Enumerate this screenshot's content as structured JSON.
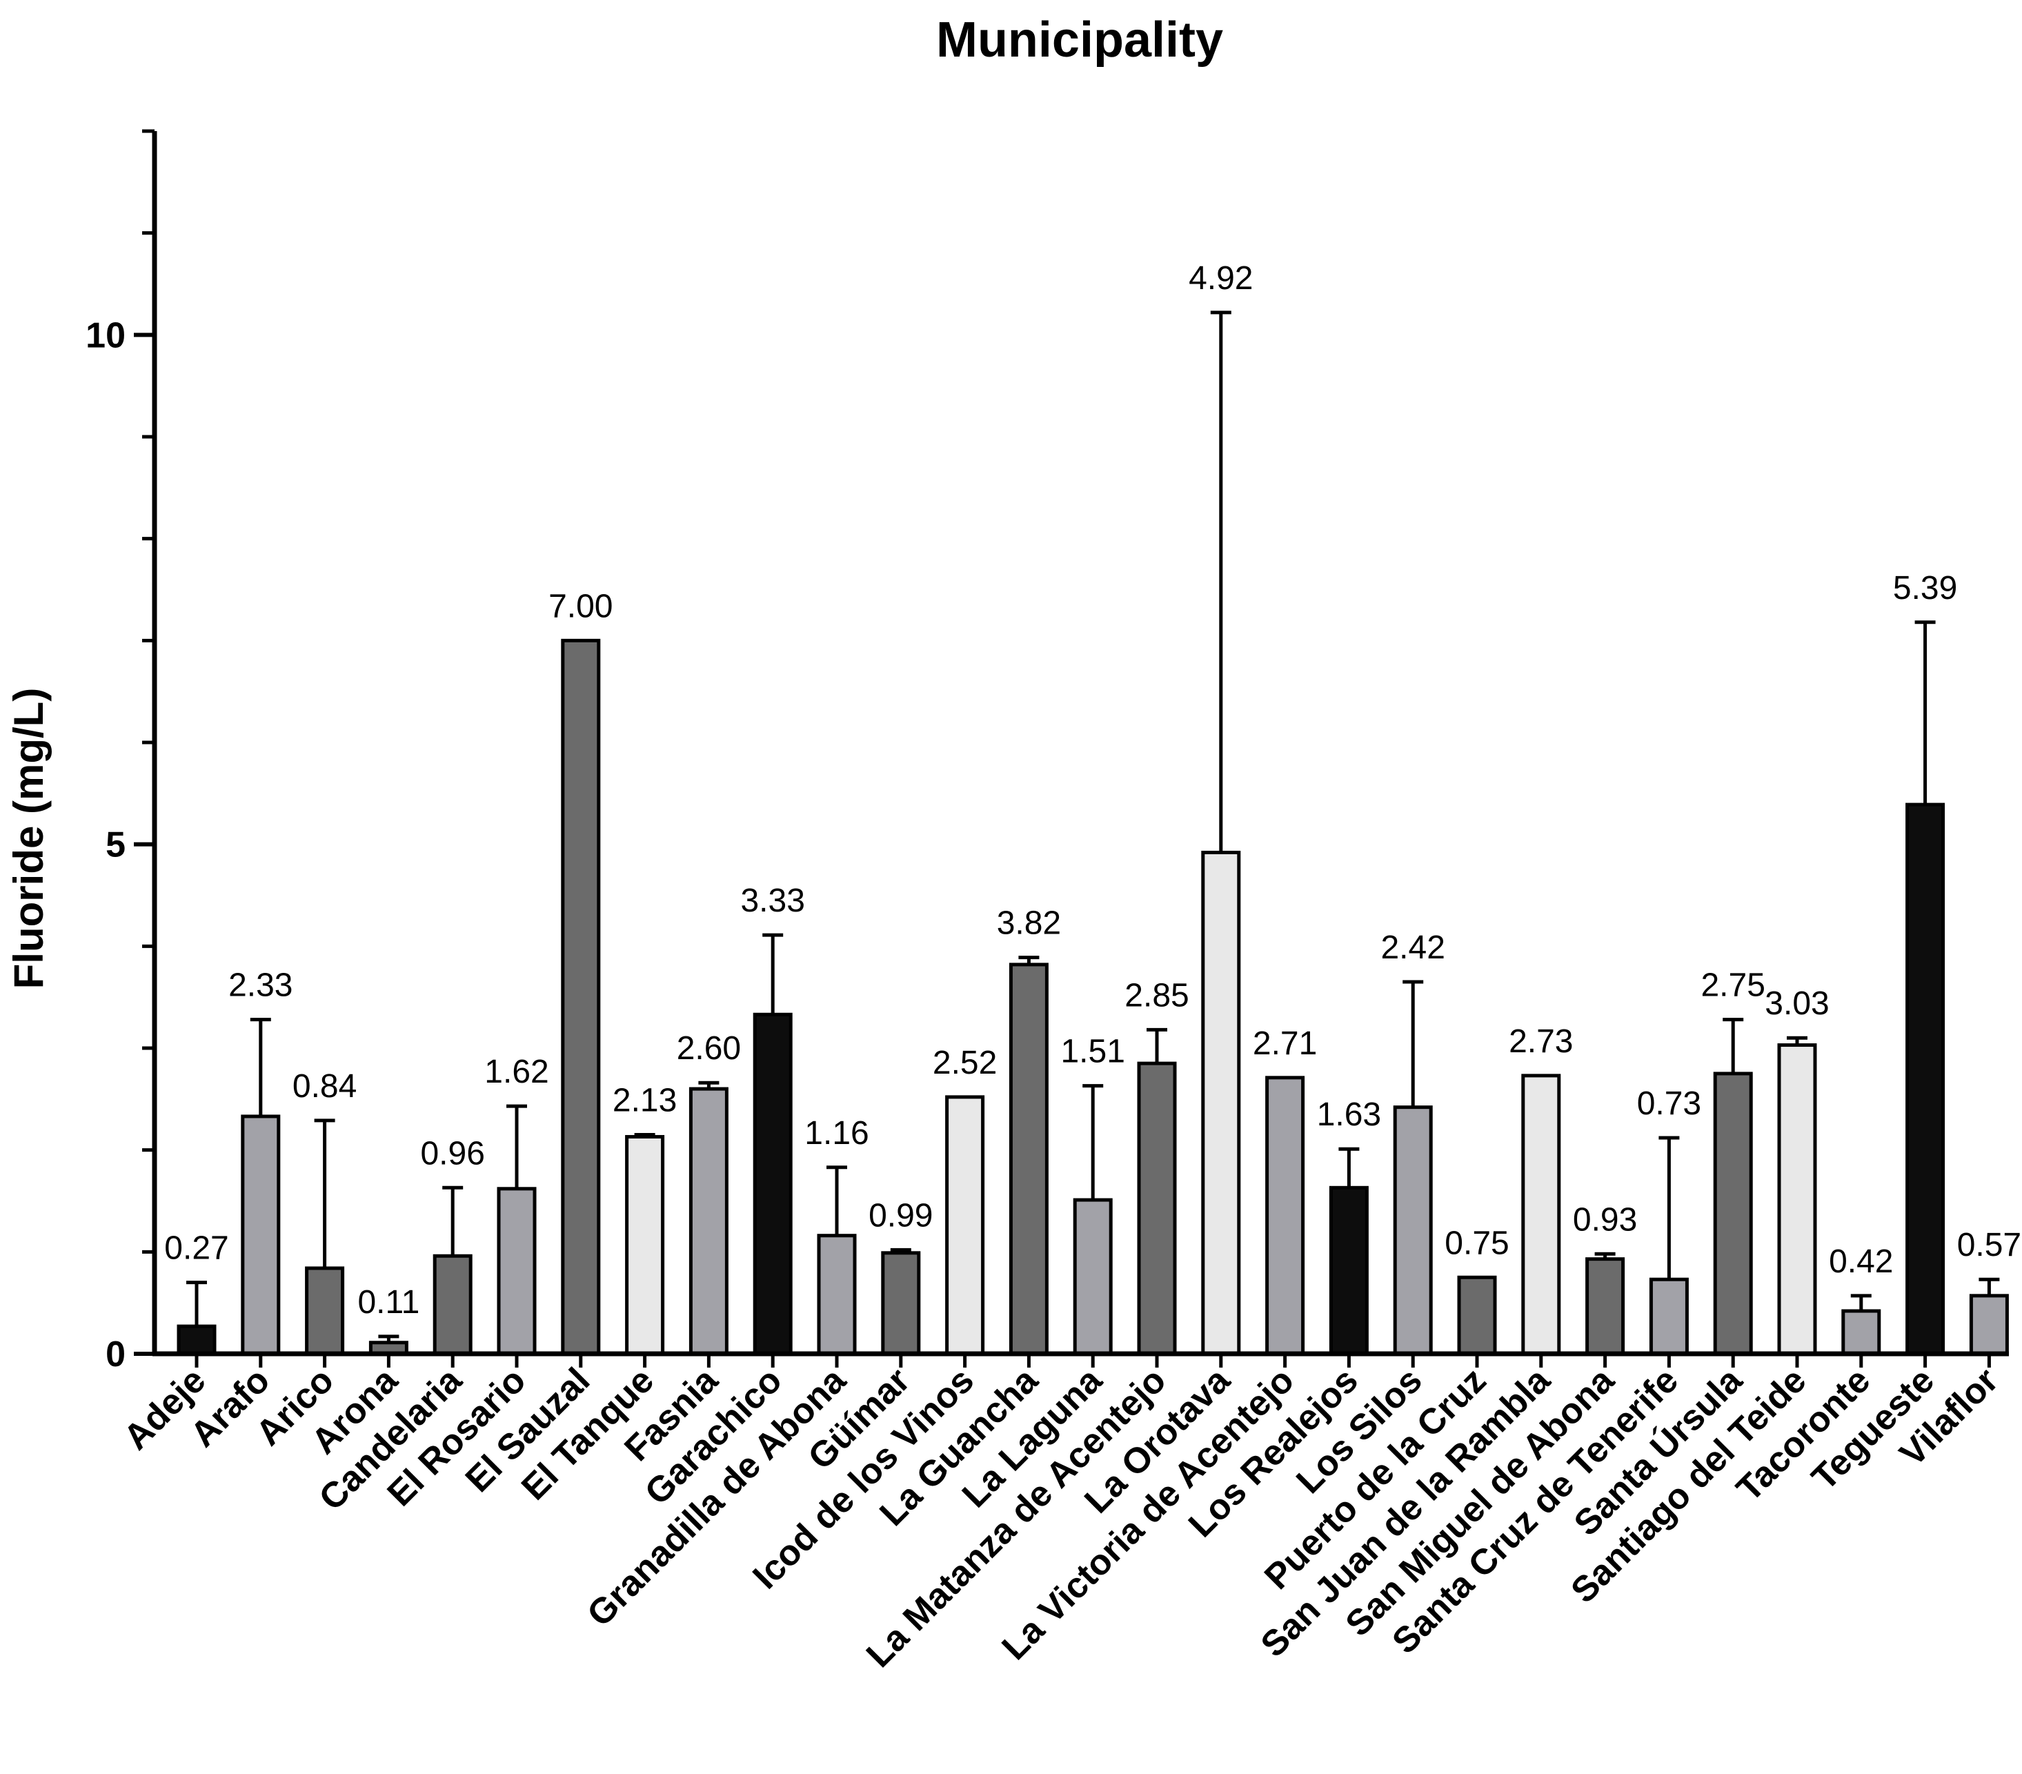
{
  "chart_data": {
    "type": "bar",
    "title": "Municipality",
    "xlabel": "",
    "ylabel": "Fluoride (mg/L)",
    "ylim": [
      0,
      12
    ],
    "y_major_ticks": [
      0,
      5,
      10
    ],
    "y_minor_step": 1,
    "grid": false,
    "categories": [
      "Adeje",
      "Arafo",
      "Arico",
      "Arona",
      "Candelaria",
      "El Rosario",
      "El Sauzal",
      "El Tanque",
      "Fasnia",
      "Garachico",
      "Granadilla de Abona",
      "Güímar",
      "Icod de los Vinos",
      "La Guancha",
      "La Laguna",
      "La Matanza de Acentejo",
      "La Orotava",
      "La Victoria de Acentejo",
      "Los Realejos",
      "Los Silos",
      "Puerto de la Cruz",
      "San Juan de la Rambla",
      "San Miguel de Abona",
      "Santa Cruz de Tenerife",
      "Santa Úrsula",
      "Santiago del Teide",
      "Tacoronte",
      "Tegueste",
      "Vilaflor"
    ],
    "values": [
      0.27,
      2.33,
      0.84,
      0.11,
      0.96,
      1.62,
      7.0,
      2.13,
      2.6,
      3.33,
      1.16,
      0.99,
      2.52,
      3.82,
      1.51,
      2.85,
      4.92,
      2.71,
      1.63,
      2.42,
      0.75,
      2.73,
      0.93,
      0.73,
      2.75,
      3.03,
      0.42,
      5.39,
      0.57
    ],
    "value_labels": [
      "0.27",
      "2.33",
      "0.84",
      "0.11",
      "0.96",
      "1.62",
      "7.00",
      "2.13",
      "2.60",
      "3.33",
      "1.16",
      "0.99",
      "2.52",
      "3.82",
      "1.51",
      "2.85",
      "4.92",
      "2.71",
      "1.63",
      "2.42",
      "0.75",
      "2.73",
      "0.93",
      "0.73",
      "2.75",
      "3.03",
      "0.42",
      "5.39",
      "0.57"
    ],
    "error_upper": [
      0.7,
      3.28,
      2.29,
      0.17,
      1.63,
      2.43,
      null,
      2.15,
      2.66,
      4.11,
      1.83,
      1.02,
      null,
      3.89,
      2.63,
      3.18,
      10.22,
      null,
      2.01,
      3.65,
      null,
      null,
      0.98,
      2.12,
      3.28,
      3.1,
      0.57,
      7.18,
      0.73
    ],
    "bar_colors": [
      "#0d0d0d",
      "#a2a2a8",
      "#6b6b6b",
      "#6b6b6b",
      "#6b6b6b",
      "#a2a2a8",
      "#6b6b6b",
      "#e8e8e8",
      "#a2a2a8",
      "#0d0d0d",
      "#a2a2a8",
      "#6b6b6b",
      "#e8e8e8",
      "#6b6b6b",
      "#a2a2a8",
      "#6b6b6b",
      "#e8e8e8",
      "#a2a2a8",
      "#0d0d0d",
      "#a2a2a8",
      "#6b6b6b",
      "#e8e8e8",
      "#6b6b6b",
      "#a2a2a8",
      "#6b6b6b",
      "#e8e8e8",
      "#a2a2a8",
      "#0d0d0d",
      "#a2a2a8"
    ]
  }
}
